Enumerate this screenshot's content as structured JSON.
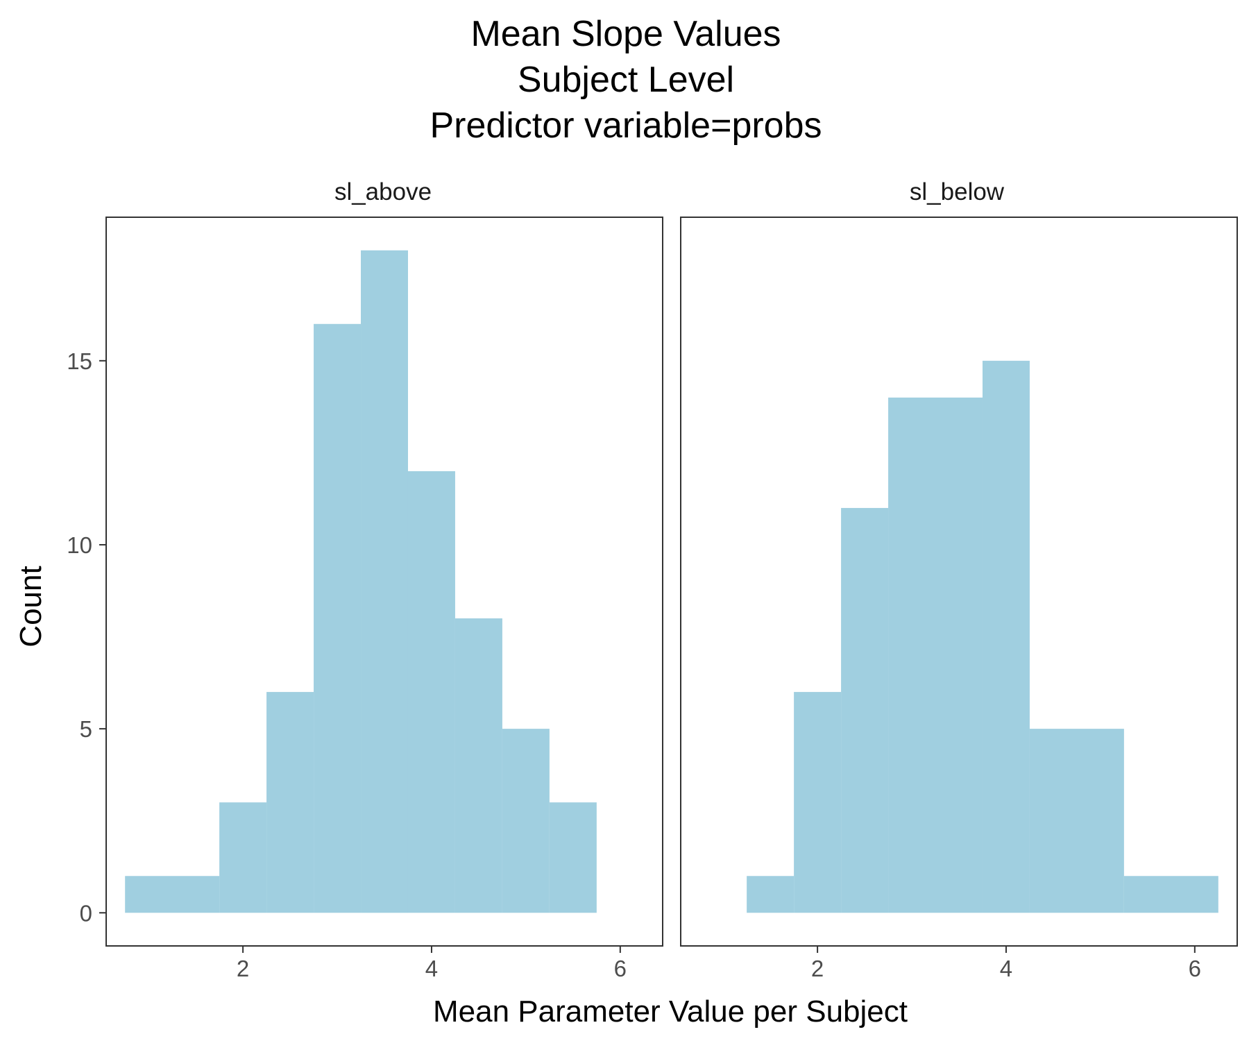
{
  "chart_data": {
    "type": "bar",
    "title_lines": [
      "Mean Slope Values",
      "Subject Level",
      "Predictor variable=probs"
    ],
    "xlabel": "Mean Parameter Value per Subject",
    "ylabel": "Count",
    "xlim": [
      0.55,
      6.45
    ],
    "ylim": [
      -0.9,
      18.9
    ],
    "x_ticks": [
      2,
      4,
      6
    ],
    "y_ticks": [
      0,
      5,
      10,
      15
    ],
    "bar_color": "#a0cfe0",
    "grid": false,
    "panels": [
      {
        "name": "sl_above",
        "bins": [
          {
            "x0": 0.75,
            "x1": 1.75,
            "count": 1
          },
          {
            "x0": 1.75,
            "x1": 2.25,
            "count": 3
          },
          {
            "x0": 2.25,
            "x1": 2.75,
            "count": 6
          },
          {
            "x0": 2.75,
            "x1": 3.25,
            "count": 16
          },
          {
            "x0": 3.25,
            "x1": 3.75,
            "count": 18
          },
          {
            "x0": 3.75,
            "x1": 4.25,
            "count": 12
          },
          {
            "x0": 4.25,
            "x1": 4.75,
            "count": 8
          },
          {
            "x0": 4.75,
            "x1": 5.25,
            "count": 5
          },
          {
            "x0": 5.25,
            "x1": 5.75,
            "count": 3
          }
        ]
      },
      {
        "name": "sl_below",
        "bins": [
          {
            "x0": 1.25,
            "x1": 1.75,
            "count": 1
          },
          {
            "x0": 1.75,
            "x1": 2.25,
            "count": 6
          },
          {
            "x0": 2.25,
            "x1": 2.75,
            "count": 11
          },
          {
            "x0": 2.75,
            "x1": 3.75,
            "count": 14
          },
          {
            "x0": 3.75,
            "x1": 4.25,
            "count": 15
          },
          {
            "x0": 4.25,
            "x1": 5.25,
            "count": 5
          },
          {
            "x0": 5.25,
            "x1": 6.25,
            "count": 1
          }
        ]
      }
    ]
  }
}
